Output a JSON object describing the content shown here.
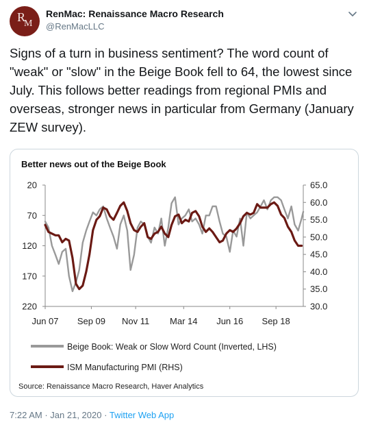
{
  "tweet": {
    "display_name": "RenMac: Renaissance Macro Research",
    "handle": "@RenMacLLC",
    "avatar_letters": {
      "r": "R",
      "m": "M"
    },
    "text": "Signs of a turn in business sentiment? The word count of \"weak\" or \"slow\" in the Beige Book fell to 64, the lowest since July. This follows better readings from regional PMIs and overseas, stronger news in particular from Germany (January ZEW survey).",
    "time": "7:22 AM",
    "separator": "·",
    "date": "Jan 21, 2020",
    "source": "Twitter Web App"
  },
  "colors": {
    "accent": "#1da1f2",
    "beige_series": "#999999",
    "ism_series": "#6b1a14"
  },
  "chart_data": {
    "type": "line",
    "title": "Better news out of the Beige Book",
    "source_note": "Source: Renaissance Macro Research, Haver Analytics",
    "x_tick_labels": [
      "Jun 07",
      "Sep 09",
      "Nov 11",
      "Mar 14",
      "Jun 16",
      "Sep 18"
    ],
    "x_ticks": [
      2007.42,
      2009.67,
      2011.83,
      2014.17,
      2016.42,
      2018.67
    ],
    "xlim": [
      2007.42,
      2020.0
    ],
    "left_axis": {
      "ticks": [
        20,
        70,
        120,
        170,
        220
      ],
      "ylim": [
        20,
        220
      ],
      "inverted": true
    },
    "right_axis": {
      "ticks": [
        "65.0",
        "60.0",
        "55.0",
        "50.0",
        "45.0",
        "40.0",
        "35.0",
        "30.0"
      ],
      "ylim": [
        30,
        65
      ]
    },
    "legend": {
      "position": "bottom"
    },
    "series": [
      {
        "name": "Beige Book: Weak or Slow Word Count (Inverted, LHS)",
        "axis": "left",
        "x": [
          2007.42,
          2007.58,
          2007.75,
          2007.92,
          2008.08,
          2008.25,
          2008.42,
          2008.58,
          2008.75,
          2008.92,
          2009.08,
          2009.25,
          2009.42,
          2009.58,
          2009.75,
          2009.92,
          2010.08,
          2010.25,
          2010.42,
          2010.58,
          2010.75,
          2010.92,
          2011.08,
          2011.25,
          2011.42,
          2011.58,
          2011.75,
          2011.92,
          2012.08,
          2012.25,
          2012.42,
          2012.58,
          2012.75,
          2012.92,
          2013.08,
          2013.25,
          2013.42,
          2013.58,
          2013.75,
          2013.92,
          2014.08,
          2014.25,
          2014.42,
          2014.58,
          2014.75,
          2014.92,
          2015.08,
          2015.25,
          2015.42,
          2015.58,
          2015.75,
          2015.92,
          2016.08,
          2016.25,
          2016.42,
          2016.58,
          2016.75,
          2016.92,
          2017.08,
          2017.25,
          2017.42,
          2017.58,
          2017.75,
          2017.92,
          2018.08,
          2018.25,
          2018.42,
          2018.58,
          2018.75,
          2018.92,
          2019.08,
          2019.25,
          2019.42,
          2019.58,
          2019.75,
          2019.92,
          2020.0
        ],
        "values": [
          80,
          90,
          120,
          135,
          150,
          130,
          125,
          170,
          195,
          180,
          160,
          115,
          95,
          80,
          65,
          70,
          60,
          55,
          75,
          90,
          105,
          125,
          85,
          70,
          95,
          160,
          135,
          90,
          80,
          85,
          105,
          115,
          90,
          100,
          75,
          120,
          90,
          50,
          40,
          85,
          75,
          70,
          60,
          80,
          75,
          85,
          100,
          70,
          70,
          55,
          55,
          80,
          100,
          105,
          130,
          95,
          105,
          75,
          120,
          65,
          75,
          70,
          65,
          55,
          45,
          60,
          45,
          40,
          40,
          45,
          60,
          75,
          55,
          85,
          95,
          75,
          64
        ]
      },
      {
        "name": "ISM Manufacturing PMI (RHS)",
        "axis": "right",
        "x": [
          2007.42,
          2007.58,
          2007.75,
          2007.92,
          2008.08,
          2008.25,
          2008.42,
          2008.58,
          2008.75,
          2008.92,
          2009.08,
          2009.25,
          2009.42,
          2009.58,
          2009.75,
          2009.92,
          2010.08,
          2010.25,
          2010.42,
          2010.58,
          2010.75,
          2010.92,
          2011.08,
          2011.25,
          2011.42,
          2011.58,
          2011.75,
          2011.92,
          2012.08,
          2012.25,
          2012.42,
          2012.58,
          2012.75,
          2012.92,
          2013.08,
          2013.25,
          2013.42,
          2013.58,
          2013.75,
          2013.92,
          2014.08,
          2014.25,
          2014.42,
          2014.58,
          2014.75,
          2014.92,
          2015.08,
          2015.25,
          2015.42,
          2015.58,
          2015.75,
          2015.92,
          2016.08,
          2016.25,
          2016.42,
          2016.58,
          2016.75,
          2016.92,
          2017.08,
          2017.25,
          2017.42,
          2017.58,
          2017.75,
          2017.92,
          2018.08,
          2018.25,
          2018.42,
          2018.58,
          2018.75,
          2018.92,
          2019.08,
          2019.25,
          2019.42,
          2019.58,
          2019.75,
          2019.92
        ],
        "values": [
          53.5,
          51.5,
          51.0,
          50.5,
          50.5,
          48.5,
          49.5,
          49.0,
          44.0,
          36.5,
          35.0,
          36.0,
          40.0,
          45.0,
          52.0,
          55.0,
          56.0,
          58.5,
          58.0,
          56.0,
          55.0,
          57.0,
          59.0,
          60.0,
          57.5,
          54.0,
          52.0,
          51.5,
          53.0,
          54.0,
          50.0,
          49.5,
          51.0,
          51.5,
          53.0,
          51.0,
          50.0,
          53.5,
          56.0,
          56.5,
          54.0,
          55.0,
          54.5,
          57.0,
          57.5,
          56.0,
          53.0,
          51.5,
          52.5,
          51.5,
          50.0,
          48.5,
          49.0,
          51.0,
          52.0,
          51.5,
          52.5,
          54.0,
          56.0,
          57.0,
          56.5,
          57.0,
          59.5,
          58.5,
          58.5,
          58.5,
          59.5,
          60.0,
          59.0,
          56.5,
          55.5,
          53.0,
          51.5,
          49.0,
          47.5,
          47.5
        ]
      }
    ]
  }
}
